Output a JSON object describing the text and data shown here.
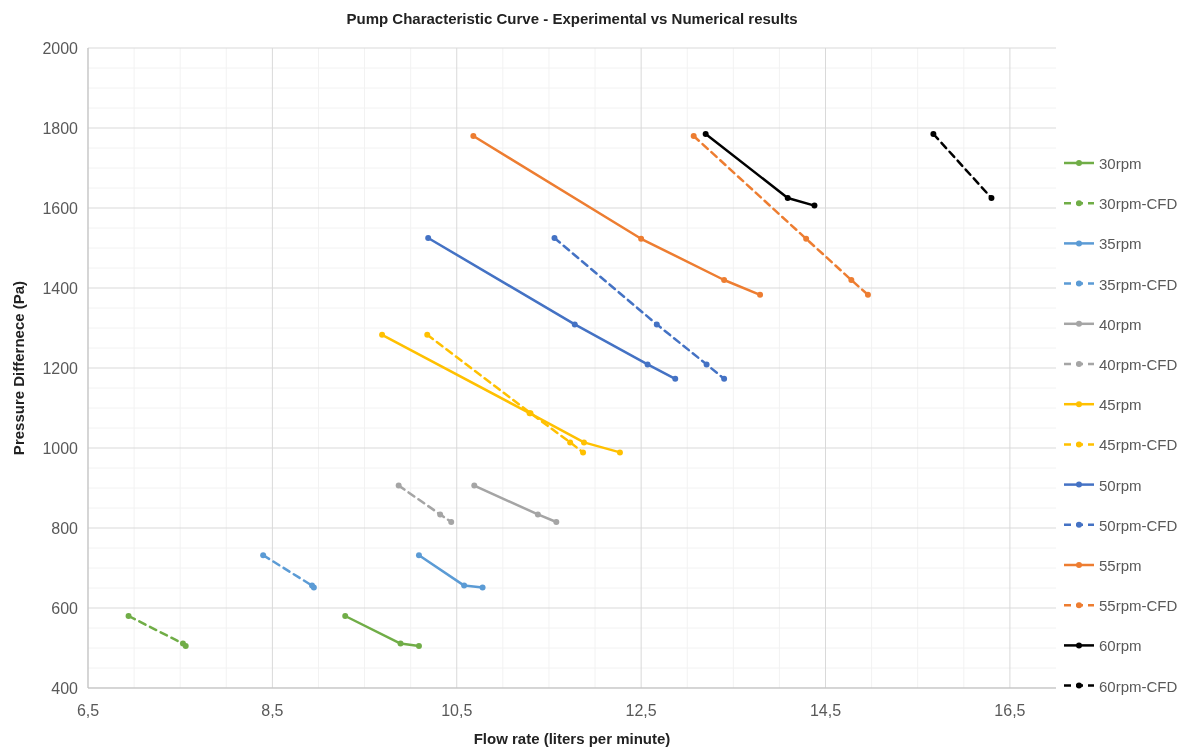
{
  "chart_data": {
    "type": "line",
    "title": "Pump Characteristic Curve - Experimental vs Numerical results",
    "xlabel": "Flow rate (liters per minute)",
    "ylabel": "Pressure Differnece (Pa)",
    "xlim": [
      6.5,
      17
    ],
    "xticks": [
      {
        "value": 6.5,
        "label": "6,5"
      },
      {
        "value": 8.5,
        "label": "8,5"
      },
      {
        "value": 10.5,
        "label": "10,5"
      },
      {
        "value": 12.5,
        "label": "12,5"
      },
      {
        "value": 14.5,
        "label": "14,5"
      },
      {
        "value": 16.5,
        "label": "16,5"
      }
    ],
    "ylim": [
      400,
      2000
    ],
    "yticks": [
      400,
      600,
      800,
      1000,
      1200,
      1400,
      1600,
      1800,
      2000
    ],
    "grid": true,
    "legend": "right",
    "marker": "circle",
    "series": [
      {
        "name": "30rpm",
        "color": "#70ad47",
        "line_style": "solid",
        "x": [
          9.29,
          9.89,
          10.09
        ],
        "values": [
          580,
          511,
          505
        ]
      },
      {
        "name": "30rpm-CFD",
        "color": "#70ad47",
        "line_style": "dashed",
        "x": [
          6.94,
          7.53,
          7.56
        ],
        "values": [
          580,
          511,
          505
        ]
      },
      {
        "name": "35rpm",
        "color": "#5b9bd5",
        "line_style": "solid",
        "x": [
          10.09,
          10.58,
          10.78
        ],
        "values": [
          732,
          656,
          651
        ]
      },
      {
        "name": "35rpm-CFD",
        "color": "#5b9bd5",
        "line_style": "dashed",
        "x": [
          8.4,
          8.93,
          8.95
        ],
        "values": [
          732,
          656,
          651
        ]
      },
      {
        "name": "40rpm",
        "color": "#a5a5a5",
        "line_style": "solid",
        "x": [
          10.69,
          11.38,
          11.58
        ],
        "values": [
          906,
          834,
          815
        ]
      },
      {
        "name": "40rpm-CFD",
        "color": "#a5a5a5",
        "line_style": "dashed",
        "x": [
          9.87,
          10.32,
          10.44
        ],
        "values": [
          906,
          834,
          815
        ]
      },
      {
        "name": "45rpm",
        "color": "#ffc000",
        "line_style": "solid",
        "x": [
          9.69,
          11.29,
          11.88,
          12.27
        ],
        "values": [
          1283,
          1087,
          1014,
          989
        ]
      },
      {
        "name": "45rpm-CFD",
        "color": "#ffc000",
        "line_style": "dashed",
        "x": [
          10.18,
          11.3,
          11.73,
          11.87
        ],
        "values": [
          1283,
          1087,
          1014,
          989
        ]
      },
      {
        "name": "50rpm",
        "color": "#4472c4",
        "line_style": "solid",
        "x": [
          10.19,
          11.78,
          12.57,
          12.87
        ],
        "values": [
          1525,
          1309,
          1209,
          1173
        ]
      },
      {
        "name": "50rpm-CFD",
        "color": "#4472c4",
        "line_style": "dashed",
        "x": [
          11.56,
          12.67,
          13.21,
          13.4
        ],
        "values": [
          1525,
          1309,
          1209,
          1173
        ]
      },
      {
        "name": "55rpm",
        "color": "#ed7d31",
        "line_style": "solid",
        "x": [
          10.68,
          12.5,
          13.4,
          13.79
        ],
        "values": [
          1780,
          1523,
          1420,
          1383
        ]
      },
      {
        "name": "55rpm-CFD",
        "color": "#ed7d31",
        "line_style": "dashed",
        "x": [
          13.07,
          14.29,
          14.78,
          14.96
        ],
        "values": [
          1780,
          1523,
          1420,
          1383
        ]
      },
      {
        "name": "60rpm",
        "color": "#000000",
        "line_style": "solid",
        "x": [
          13.2,
          14.09,
          14.38
        ],
        "values": [
          1785,
          1625,
          1606
        ]
      },
      {
        "name": "60rpm-CFD",
        "color": "#000000",
        "line_style": "dashed",
        "x": [
          15.67,
          16.3
        ],
        "values": [
          1785,
          1625
        ]
      }
    ]
  }
}
